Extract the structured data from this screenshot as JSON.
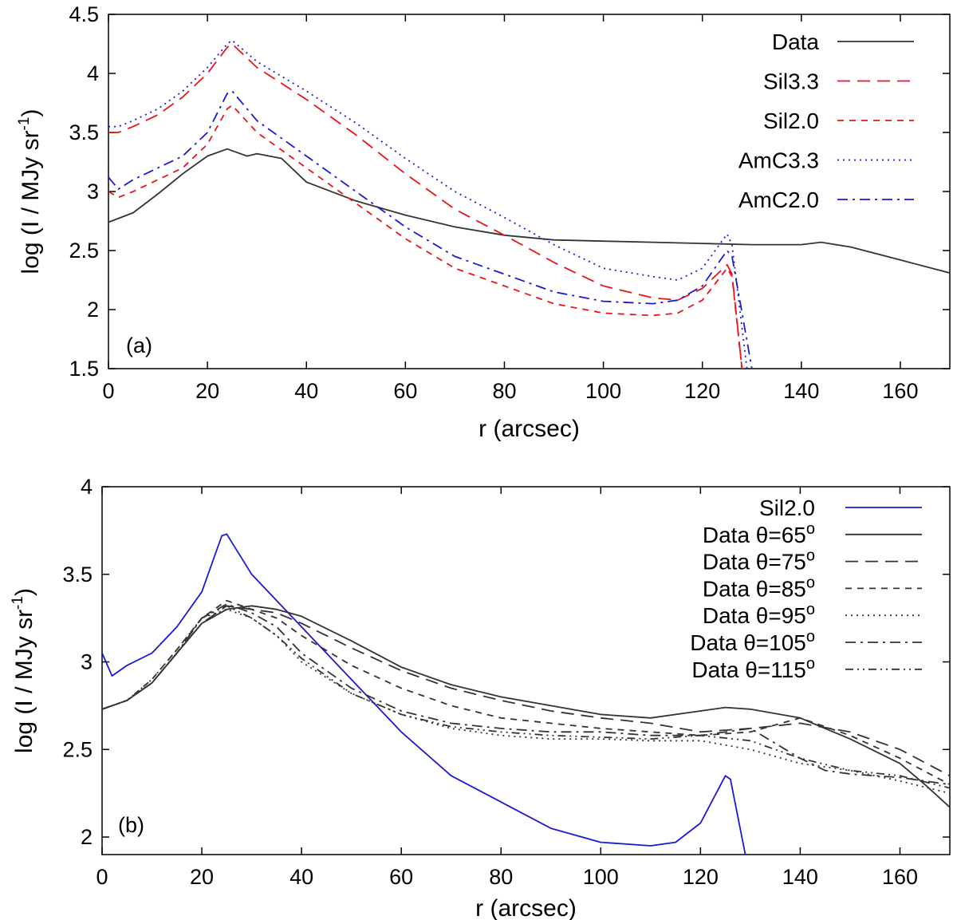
{
  "chart_data": [
    {
      "type": "line",
      "panel_label": "(a)",
      "xlabel": "r (arcsec)",
      "ylabel": "log (I / MJy sr",
      "ylabel_sup": "-1",
      "ylabel_close": ")",
      "xlim": [
        0,
        170
      ],
      "ylim": [
        1.5,
        4.5
      ],
      "x_ticks": [
        "0",
        "20",
        "40",
        "60",
        "80",
        "100",
        "120",
        "140",
        "160"
      ],
      "y_ticks": [
        "1.5",
        "2",
        "2.5",
        "3",
        "3.5",
        "4",
        "4.5"
      ],
      "legend_position": "top-right",
      "series": [
        {
          "name": "Data",
          "color": "#333333",
          "dash": "solid",
          "x": [
            0,
            5,
            10,
            15,
            20,
            24,
            26,
            28,
            30,
            35,
            40,
            50,
            60,
            70,
            80,
            90,
            100,
            110,
            120,
            130,
            140,
            144,
            150,
            160,
            170
          ],
          "y": [
            2.74,
            2.82,
            2.98,
            3.15,
            3.3,
            3.36,
            3.33,
            3.3,
            3.32,
            3.28,
            3.08,
            2.92,
            2.8,
            2.7,
            2.63,
            2.59,
            2.58,
            2.57,
            2.56,
            2.55,
            2.55,
            2.57,
            2.53,
            2.42,
            2.31
          ]
        },
        {
          "name": "Sil3.3",
          "color": "#e8141a",
          "dash": "long-dash",
          "x": [
            0,
            2,
            5,
            10,
            15,
            20,
            24,
            25,
            30,
            40,
            50,
            60,
            70,
            80,
            90,
            100,
            110,
            115,
            120,
            125,
            126,
            128
          ],
          "y": [
            3.5,
            3.5,
            3.55,
            3.65,
            3.8,
            4.0,
            4.22,
            4.25,
            4.05,
            3.78,
            3.48,
            3.15,
            2.85,
            2.63,
            2.4,
            2.2,
            2.1,
            2.08,
            2.18,
            2.38,
            2.3,
            1.5
          ]
        },
        {
          "name": "Sil2.0",
          "color": "#e8141a",
          "dash": "short-dash",
          "x": [
            0,
            2,
            5,
            10,
            15,
            20,
            24,
            25,
            30,
            40,
            50,
            60,
            70,
            80,
            90,
            100,
            110,
            115,
            120,
            125,
            126,
            128
          ],
          "y": [
            3.0,
            2.95,
            3.0,
            3.1,
            3.2,
            3.4,
            3.7,
            3.73,
            3.5,
            3.2,
            2.9,
            2.6,
            2.35,
            2.2,
            2.05,
            1.97,
            1.95,
            1.97,
            2.08,
            2.35,
            2.28,
            1.5
          ]
        },
        {
          "name": "AmC3.3",
          "color": "#1a1ad6",
          "dash": "dotted",
          "x": [
            0,
            2,
            5,
            10,
            15,
            20,
            24,
            25,
            30,
            40,
            50,
            60,
            70,
            80,
            90,
            100,
            110,
            115,
            120,
            125,
            126,
            129
          ],
          "y": [
            3.55,
            3.55,
            3.6,
            3.7,
            3.85,
            4.05,
            4.25,
            4.28,
            4.1,
            3.85,
            3.58,
            3.28,
            3.0,
            2.78,
            2.55,
            2.35,
            2.28,
            2.25,
            2.35,
            2.64,
            2.55,
            1.5
          ]
        },
        {
          "name": "AmC2.0",
          "color": "#1a1ad6",
          "dash": "dash-dot",
          "x": [
            0,
            2,
            5,
            10,
            15,
            20,
            24,
            25,
            30,
            40,
            50,
            60,
            70,
            80,
            90,
            100,
            110,
            115,
            120,
            125,
            126,
            130
          ],
          "y": [
            3.12,
            3.02,
            3.1,
            3.2,
            3.3,
            3.5,
            3.83,
            3.85,
            3.6,
            3.3,
            3.0,
            2.7,
            2.45,
            2.3,
            2.15,
            2.07,
            2.05,
            2.08,
            2.2,
            2.5,
            2.45,
            1.5
          ]
        }
      ]
    },
    {
      "type": "line",
      "panel_label": "(b)",
      "xlabel": "r (arcsec)",
      "ylabel": "log (I / MJy sr",
      "ylabel_sup": "-1",
      "ylabel_close": ")",
      "xlim": [
        0,
        170
      ],
      "ylim": [
        1.9,
        4.0
      ],
      "x_ticks": [
        "0",
        "20",
        "40",
        "60",
        "80",
        "100",
        "120",
        "140",
        "160"
      ],
      "y_ticks": [
        "2",
        "2.5",
        "3",
        "3.5",
        "4"
      ],
      "legend_position": "top-right",
      "series": [
        {
          "name": "Sil2.0",
          "color": "#1a1ad6",
          "dash": "solid",
          "x": [
            0,
            2,
            5,
            10,
            15,
            20,
            24,
            25,
            30,
            40,
            50,
            60,
            70,
            80,
            90,
            100,
            110,
            115,
            120,
            125,
            126,
            129
          ],
          "y": [
            3.05,
            2.92,
            2.98,
            3.05,
            3.2,
            3.4,
            3.72,
            3.73,
            3.5,
            3.2,
            2.9,
            2.6,
            2.35,
            2.2,
            2.05,
            1.97,
            1.95,
            1.97,
            2.08,
            2.35,
            2.33,
            1.9
          ]
        },
        {
          "name": "Data θ=65",
          "sup": "o",
          "color": "#333333",
          "dash": "solid",
          "x": [
            0,
            5,
            10,
            15,
            20,
            25,
            30,
            35,
            40,
            50,
            60,
            70,
            80,
            90,
            100,
            110,
            120,
            125,
            130,
            140,
            150,
            160,
            165,
            170
          ],
          "y": [
            2.73,
            2.78,
            2.88,
            3.05,
            3.22,
            3.3,
            3.32,
            3.3,
            3.26,
            3.12,
            2.97,
            2.87,
            2.8,
            2.75,
            2.7,
            2.68,
            2.72,
            2.74,
            2.73,
            2.68,
            2.56,
            2.42,
            2.3,
            2.17
          ]
        },
        {
          "name": "Data θ=75",
          "sup": "o",
          "color": "#333333",
          "dash": "long-dash",
          "x": [
            0,
            5,
            10,
            15,
            20,
            25,
            30,
            35,
            40,
            50,
            60,
            70,
            80,
            90,
            100,
            110,
            120,
            130,
            140,
            150,
            160,
            170
          ],
          "y": [
            2.73,
            2.78,
            2.88,
            3.05,
            3.22,
            3.32,
            3.3,
            3.28,
            3.22,
            3.08,
            2.95,
            2.85,
            2.78,
            2.72,
            2.68,
            2.65,
            2.6,
            2.62,
            2.65,
            2.6,
            2.5,
            2.35
          ]
        },
        {
          "name": "Data θ=85",
          "sup": "o",
          "color": "#333333",
          "dash": "short-dash",
          "x": [
            0,
            5,
            10,
            15,
            20,
            25,
            30,
            35,
            40,
            50,
            60,
            70,
            80,
            90,
            100,
            110,
            120,
            130,
            140,
            150,
            160,
            170
          ],
          "y": [
            2.73,
            2.78,
            2.9,
            3.07,
            3.25,
            3.35,
            3.3,
            3.25,
            3.15,
            2.98,
            2.85,
            2.75,
            2.68,
            2.65,
            2.62,
            2.6,
            2.58,
            2.6,
            2.68,
            2.58,
            2.45,
            2.3
          ]
        },
        {
          "name": "Data θ=95",
          "sup": "o",
          "color": "#333333",
          "dash": "dotted",
          "x": [
            0,
            5,
            10,
            15,
            20,
            25,
            30,
            35,
            40,
            50,
            60,
            70,
            80,
            90,
            100,
            110,
            120,
            130,
            140,
            150,
            160,
            170
          ],
          "y": [
            2.73,
            2.78,
            2.9,
            3.07,
            3.25,
            3.3,
            3.25,
            3.15,
            3.0,
            2.82,
            2.7,
            2.62,
            2.58,
            2.56,
            2.56,
            2.55,
            2.55,
            2.5,
            2.42,
            2.38,
            2.32,
            2.25
          ]
        },
        {
          "name": "Data θ=105",
          "sup": "o",
          "color": "#333333",
          "dash": "dash-dot",
          "x": [
            0,
            5,
            10,
            15,
            20,
            25,
            30,
            35,
            40,
            50,
            60,
            70,
            80,
            90,
            100,
            110,
            120,
            130,
            140,
            145,
            150,
            160,
            170
          ],
          "y": [
            2.73,
            2.78,
            2.88,
            3.05,
            3.25,
            3.33,
            3.28,
            3.2,
            3.05,
            2.85,
            2.72,
            2.65,
            2.62,
            2.6,
            2.6,
            2.58,
            2.58,
            2.62,
            2.45,
            2.38,
            2.36,
            2.34,
            2.3
          ]
        },
        {
          "name": "Data θ=115",
          "sup": "o",
          "color": "#333333",
          "dash": "dash-dot-dot",
          "x": [
            0,
            5,
            10,
            15,
            20,
            25,
            30,
            35,
            40,
            50,
            60,
            70,
            80,
            90,
            100,
            110,
            120,
            130,
            140,
            150,
            160,
            170
          ],
          "y": [
            2.73,
            2.78,
            2.88,
            3.05,
            3.25,
            3.32,
            3.25,
            3.15,
            3.02,
            2.82,
            2.7,
            2.63,
            2.6,
            2.58,
            2.57,
            2.56,
            2.58,
            2.55,
            2.45,
            2.38,
            2.35,
            2.28
          ]
        }
      ]
    }
  ]
}
